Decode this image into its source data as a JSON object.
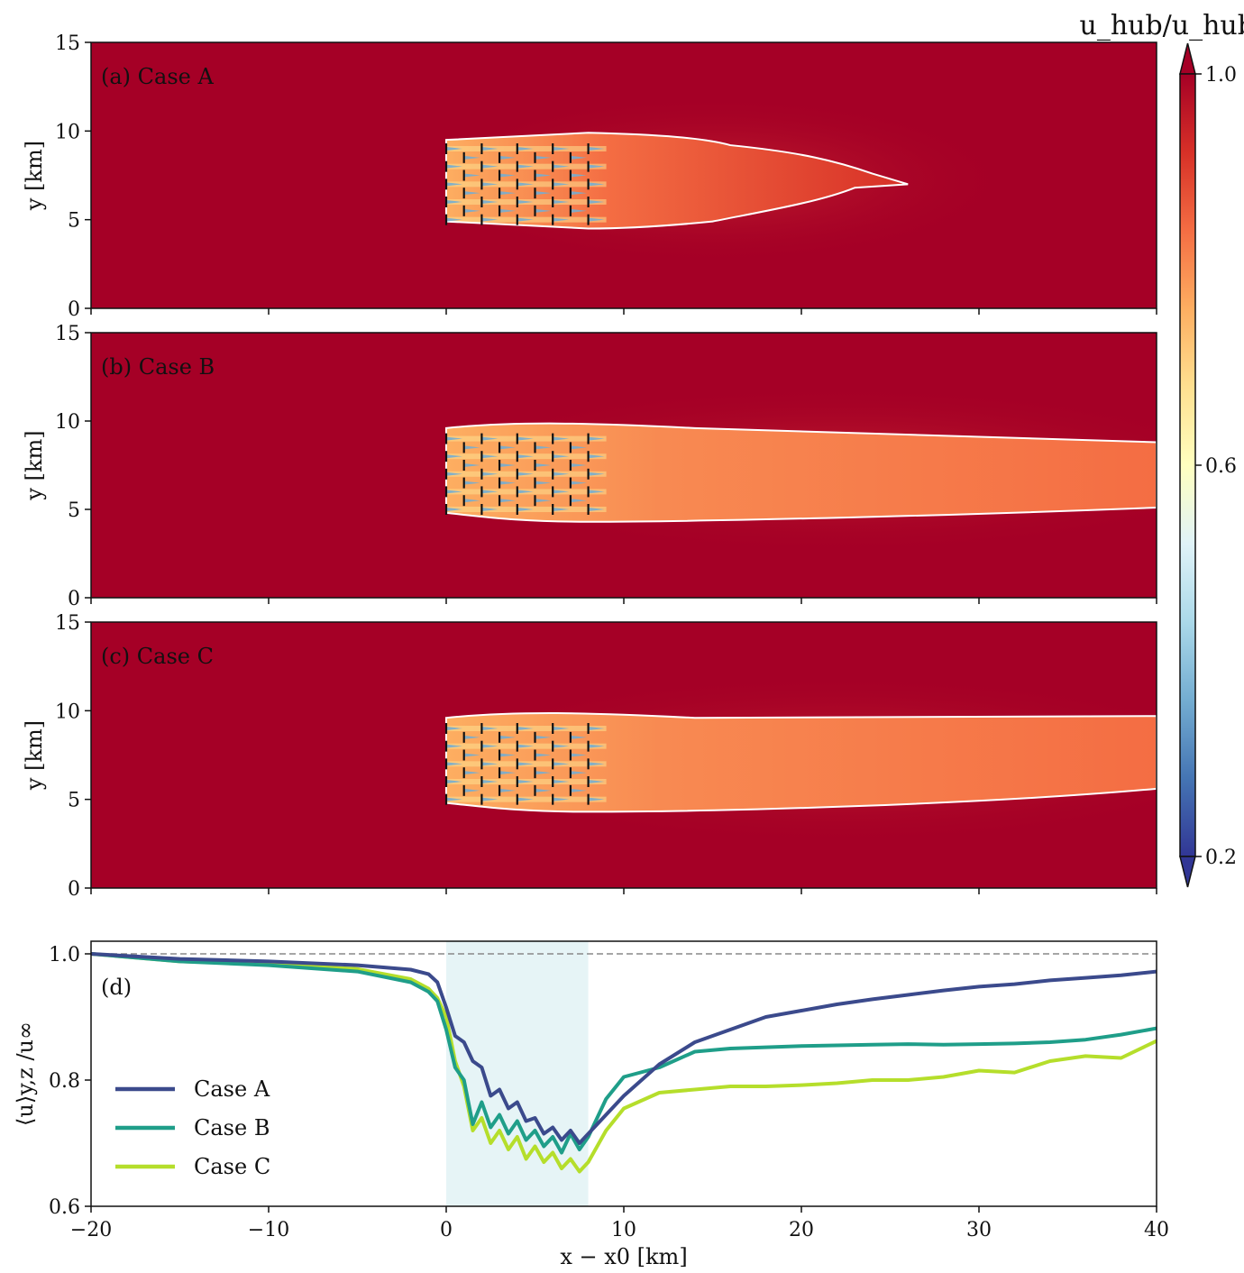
{
  "colorbar": {
    "title": "u_hub/u_hub,∞",
    "ticks": [
      "0.2",
      "0.6",
      "1.0"
    ],
    "range": [
      0.2,
      1.0
    ],
    "colormap": "RdYlBu",
    "extend": "both"
  },
  "heatmaps": {
    "ylabel": "y [km]",
    "yticks": [
      "0",
      "5",
      "10",
      "15"
    ],
    "panels": [
      {
        "label": "(a) Case A"
      },
      {
        "label": "(b) Case B"
      },
      {
        "label": "(c) Case C"
      }
    ]
  },
  "colors": {
    "field_background": "#a50026",
    "wake": "#f46d43",
    "contour": "#ffffff",
    "case_a": "#3b4a8c",
    "case_b": "#1f9e89",
    "case_c": "#b5de2b",
    "shade": "#d6ecf0"
  },
  "chart_data": [
    {
      "type": "heatmap",
      "title": "(a) Case A",
      "xlim": [
        -20,
        40
      ],
      "ylim": [
        0,
        15
      ],
      "turbine_x_km": [
        0,
        1,
        2,
        3,
        4,
        5,
        6,
        7,
        8
      ],
      "turbine_y_km": [
        5,
        6,
        7,
        8,
        9
      ],
      "wake_contour_x_extent_km": [
        0,
        26
      ]
    },
    {
      "type": "heatmap",
      "title": "(b) Case B",
      "xlim": [
        -20,
        40
      ],
      "ylim": [
        0,
        15
      ],
      "turbine_x_km": [
        0,
        1,
        2,
        3,
        4,
        5,
        6,
        7,
        8
      ],
      "turbine_y_km": [
        5,
        6,
        7,
        8,
        9
      ],
      "wake_contour_x_extent_km": [
        0,
        40
      ]
    },
    {
      "type": "heatmap",
      "title": "(c) Case C",
      "xlim": [
        -20,
        40
      ],
      "ylim": [
        0,
        15
      ],
      "turbine_x_km": [
        0,
        1,
        2,
        3,
        4,
        5,
        6,
        7,
        8
      ],
      "turbine_y_km": [
        5,
        6,
        7,
        8,
        9
      ],
      "wake_contour_x_extent_km": [
        0,
        40
      ]
    },
    {
      "type": "line",
      "title": "(d)",
      "xlabel": "x − x0 [km]",
      "ylabel": "⟨u⟩y,z /u∞",
      "xlim": [
        -20,
        40
      ],
      "ylim": [
        0.6,
        1.02
      ],
      "xticks": [
        "−20",
        "−10",
        "0",
        "10",
        "20",
        "30",
        "40"
      ],
      "yticks": [
        "0.6",
        "0.8",
        "1.0"
      ],
      "reference_line_y": 1.0,
      "shaded_region_x": [
        0,
        8
      ],
      "legend_position": "lower-left",
      "series": [
        {
          "name": "Case A",
          "x": [
            -20,
            -15,
            -10,
            -5,
            -2,
            -1,
            -0.5,
            0,
            0.5,
            1,
            1.5,
            2,
            2.5,
            3,
            3.5,
            4,
            4.5,
            5,
            5.5,
            6,
            6.5,
            7,
            7.5,
            8,
            9,
            10,
            12,
            14,
            16,
            18,
            20,
            22,
            24,
            26,
            28,
            30,
            32,
            34,
            36,
            38,
            40
          ],
          "y": [
            1.0,
            0.992,
            0.988,
            0.982,
            0.975,
            0.968,
            0.955,
            0.915,
            0.87,
            0.86,
            0.83,
            0.82,
            0.775,
            0.785,
            0.755,
            0.765,
            0.735,
            0.74,
            0.715,
            0.725,
            0.705,
            0.72,
            0.7,
            0.715,
            0.745,
            0.775,
            0.825,
            0.86,
            0.88,
            0.9,
            0.91,
            0.92,
            0.928,
            0.935,
            0.942,
            0.948,
            0.952,
            0.958,
            0.962,
            0.966,
            0.972
          ]
        },
        {
          "name": "Case B",
          "x": [
            -20,
            -15,
            -10,
            -5,
            -2,
            -1,
            -0.5,
            0,
            0.5,
            1,
            1.5,
            2,
            2.5,
            3,
            3.5,
            4,
            4.5,
            5,
            5.5,
            6,
            6.5,
            7,
            7.5,
            8,
            9,
            10,
            12,
            14,
            16,
            18,
            20,
            22,
            24,
            26,
            28,
            30,
            32,
            34,
            36,
            38,
            40
          ],
          "y": [
            1.0,
            0.988,
            0.982,
            0.972,
            0.955,
            0.94,
            0.925,
            0.88,
            0.82,
            0.8,
            0.73,
            0.765,
            0.725,
            0.745,
            0.715,
            0.735,
            0.705,
            0.72,
            0.695,
            0.71,
            0.685,
            0.715,
            0.69,
            0.71,
            0.77,
            0.805,
            0.82,
            0.845,
            0.85,
            0.852,
            0.854,
            0.855,
            0.856,
            0.857,
            0.856,
            0.857,
            0.858,
            0.86,
            0.864,
            0.872,
            0.882
          ]
        },
        {
          "name": "Case C",
          "x": [
            -20,
            -15,
            -10,
            -5,
            -2,
            -1,
            -0.5,
            0,
            0.5,
            1,
            1.5,
            2,
            2.5,
            3,
            3.5,
            4,
            4.5,
            5,
            5.5,
            6,
            6.5,
            7,
            7.5,
            8,
            9,
            10,
            12,
            14,
            16,
            18,
            20,
            22,
            24,
            26,
            28,
            30,
            32,
            34,
            36,
            38,
            40
          ],
          "y": [
            1.0,
            0.988,
            0.984,
            0.976,
            0.96,
            0.945,
            0.93,
            0.9,
            0.83,
            0.79,
            0.72,
            0.74,
            0.7,
            0.72,
            0.69,
            0.71,
            0.675,
            0.695,
            0.67,
            0.685,
            0.66,
            0.675,
            0.655,
            0.67,
            0.72,
            0.755,
            0.78,
            0.785,
            0.79,
            0.79,
            0.792,
            0.795,
            0.8,
            0.8,
            0.805,
            0.815,
            0.812,
            0.83,
            0.838,
            0.835,
            0.862
          ]
        }
      ]
    }
  ]
}
